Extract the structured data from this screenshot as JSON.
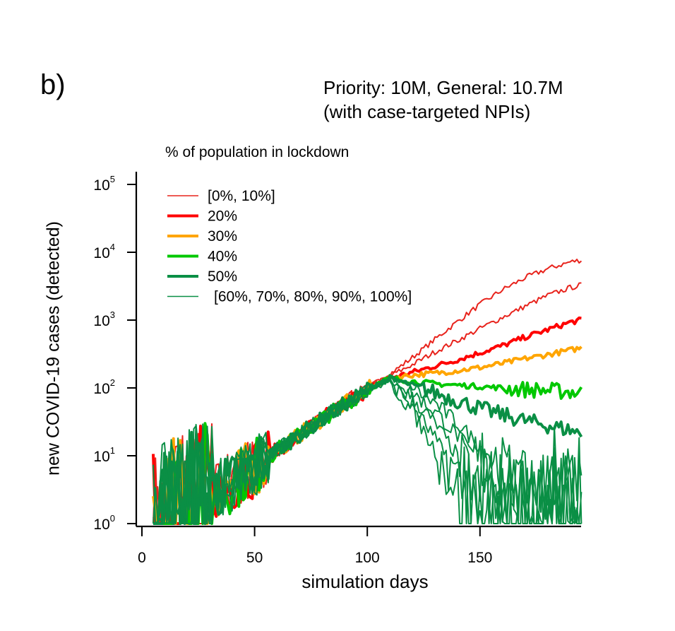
{
  "panel_label": "b)",
  "chart_data": {
    "type": "line",
    "title": "Priority: 10M, General: 10.7M",
    "subtitle": "(with case-targeted NPIs)",
    "xlabel": "simulation days",
    "ylabel": "new COVID-19 cases (detected)",
    "yscale": "log",
    "xlim": [
      0,
      195
    ],
    "ylim": [
      1,
      100000
    ],
    "xticks": [
      0,
      50,
      100,
      150
    ],
    "xtick_labels": [
      "0",
      "50",
      "100",
      "150"
    ],
    "yticks": [
      1,
      10,
      100,
      1000,
      10000,
      100000
    ],
    "ytick_labels": [
      {
        "base": "10",
        "exp": "0"
      },
      {
        "base": "10",
        "exp": "1"
      },
      {
        "base": "10",
        "exp": "2"
      },
      {
        "base": "10",
        "exp": "3"
      },
      {
        "base": "10",
        "exp": "4"
      },
      {
        "base": "10",
        "exp": "5"
      }
    ],
    "grid": false,
    "legend": {
      "title": "% of population in lockdown",
      "placement": "top-left",
      "entries": [
        {
          "label": "[0%, 10%]",
          "color": "#e8231c",
          "weight": "thin"
        },
        {
          "label": "20%",
          "color": "#ff0000",
          "weight": "thick"
        },
        {
          "label": "30%",
          "color": "#ffa500",
          "weight": "thick"
        },
        {
          "label": "40%",
          "color": "#00c800",
          "weight": "thick"
        },
        {
          "label": "50%",
          "color": "#0a8f45",
          "weight": "thick"
        },
        {
          "label": "[60%, 70%, 80%, 90%, 100%]",
          "color": "#0a8f45",
          "weight": "thin"
        }
      ]
    },
    "series": [
      {
        "name": "0%",
        "color": "#e8231c",
        "weight": "thin",
        "x": [
          5,
          20,
          40,
          60,
          80,
          100,
          110,
          120,
          130,
          140,
          150,
          160,
          170,
          180,
          190,
          195
        ],
        "y": [
          1,
          2,
          4,
          12,
          35,
          100,
          160,
          280,
          520,
          950,
          1700,
          2800,
          4200,
          5700,
          7200,
          7700
        ]
      },
      {
        "name": "10%",
        "color": "#e8231c",
        "weight": "thin",
        "x": [
          5,
          20,
          40,
          60,
          80,
          100,
          110,
          120,
          130,
          140,
          150,
          160,
          170,
          180,
          190,
          195
        ],
        "y": [
          1,
          2,
          4,
          12,
          35,
          100,
          150,
          220,
          340,
          500,
          750,
          1100,
          1600,
          2300,
          3000,
          3300
        ]
      },
      {
        "name": "20%",
        "color": "#ff0000",
        "weight": "thick",
        "x": [
          5,
          20,
          40,
          60,
          80,
          100,
          110,
          120,
          130,
          140,
          150,
          160,
          170,
          180,
          190,
          195
        ],
        "y": [
          1,
          2,
          4,
          12,
          35,
          95,
          140,
          170,
          210,
          260,
          330,
          420,
          560,
          720,
          930,
          1000
        ]
      },
      {
        "name": "30%",
        "color": "#ffa500",
        "weight": "thick",
        "x": [
          5,
          20,
          40,
          60,
          80,
          100,
          110,
          120,
          130,
          140,
          150,
          160,
          170,
          180,
          190,
          195
        ],
        "y": [
          1,
          2,
          4,
          12,
          35,
          95,
          140,
          155,
          165,
          180,
          200,
          230,
          270,
          310,
          360,
          390
        ]
      },
      {
        "name": "40%",
        "color": "#00c800",
        "weight": "thick",
        "x": [
          5,
          20,
          40,
          60,
          80,
          100,
          110,
          120,
          130,
          140,
          150,
          160,
          170,
          180,
          190,
          195
        ],
        "y": [
          1,
          2,
          4,
          12,
          35,
          95,
          140,
          125,
          115,
          110,
          105,
          100,
          95,
          92,
          88,
          85
        ]
      },
      {
        "name": "50%",
        "color": "#0a8f45",
        "weight": "thick",
        "x": [
          5,
          20,
          40,
          60,
          80,
          100,
          110,
          120,
          130,
          140,
          150,
          160,
          170,
          180,
          190,
          195
        ],
        "y": [
          1,
          2,
          4,
          12,
          35,
          95,
          140,
          110,
          85,
          65,
          50,
          40,
          33,
          28,
          24,
          21
        ]
      },
      {
        "name": "60%",
        "color": "#0a8f45",
        "weight": "thin",
        "x": [
          5,
          20,
          40,
          60,
          80,
          100,
          110,
          120,
          130,
          140,
          150,
          160,
          170,
          180,
          190,
          195
        ],
        "y": [
          1,
          2,
          4,
          12,
          35,
          95,
          140,
          100,
          60,
          30,
          14,
          7,
          4,
          3,
          3,
          2
        ]
      },
      {
        "name": "70%",
        "color": "#0a8f45",
        "weight": "thin",
        "x": [
          5,
          20,
          40,
          60,
          80,
          100,
          110,
          120,
          130,
          140,
          150,
          160,
          170,
          180,
          190,
          195
        ],
        "y": [
          1,
          2,
          4,
          12,
          35,
          95,
          135,
          85,
          45,
          20,
          8,
          4,
          3,
          2,
          2,
          1
        ]
      },
      {
        "name": "80%",
        "color": "#0a8f45",
        "weight": "thin",
        "x": [
          5,
          20,
          40,
          60,
          80,
          100,
          110,
          120,
          130,
          140,
          150,
          160,
          170,
          180,
          190,
          195
        ],
        "y": [
          1,
          2,
          4,
          12,
          35,
          95,
          130,
          70,
          30,
          10,
          3,
          1,
          1,
          1,
          1,
          1
        ]
      },
      {
        "name": "90%",
        "color": "#0a8f45",
        "weight": "thin",
        "x": [
          5,
          20,
          40,
          60,
          80,
          100,
          110,
          120,
          130,
          140,
          150,
          160,
          170,
          180,
          190,
          195
        ],
        "y": [
          1,
          2,
          4,
          12,
          35,
          95,
          125,
          55,
          18,
          5,
          1,
          1,
          1,
          1,
          1,
          1
        ]
      },
      {
        "name": "100%",
        "color": "#0a8f45",
        "weight": "thin",
        "x": [
          5,
          20,
          40,
          60,
          80,
          100,
          110,
          120,
          130,
          140,
          150,
          160,
          170,
          180,
          190,
          195
        ],
        "y": [
          1,
          2,
          4,
          12,
          35,
          95,
          120,
          45,
          12,
          3,
          1,
          1,
          1,
          1,
          1,
          1
        ]
      }
    ]
  }
}
